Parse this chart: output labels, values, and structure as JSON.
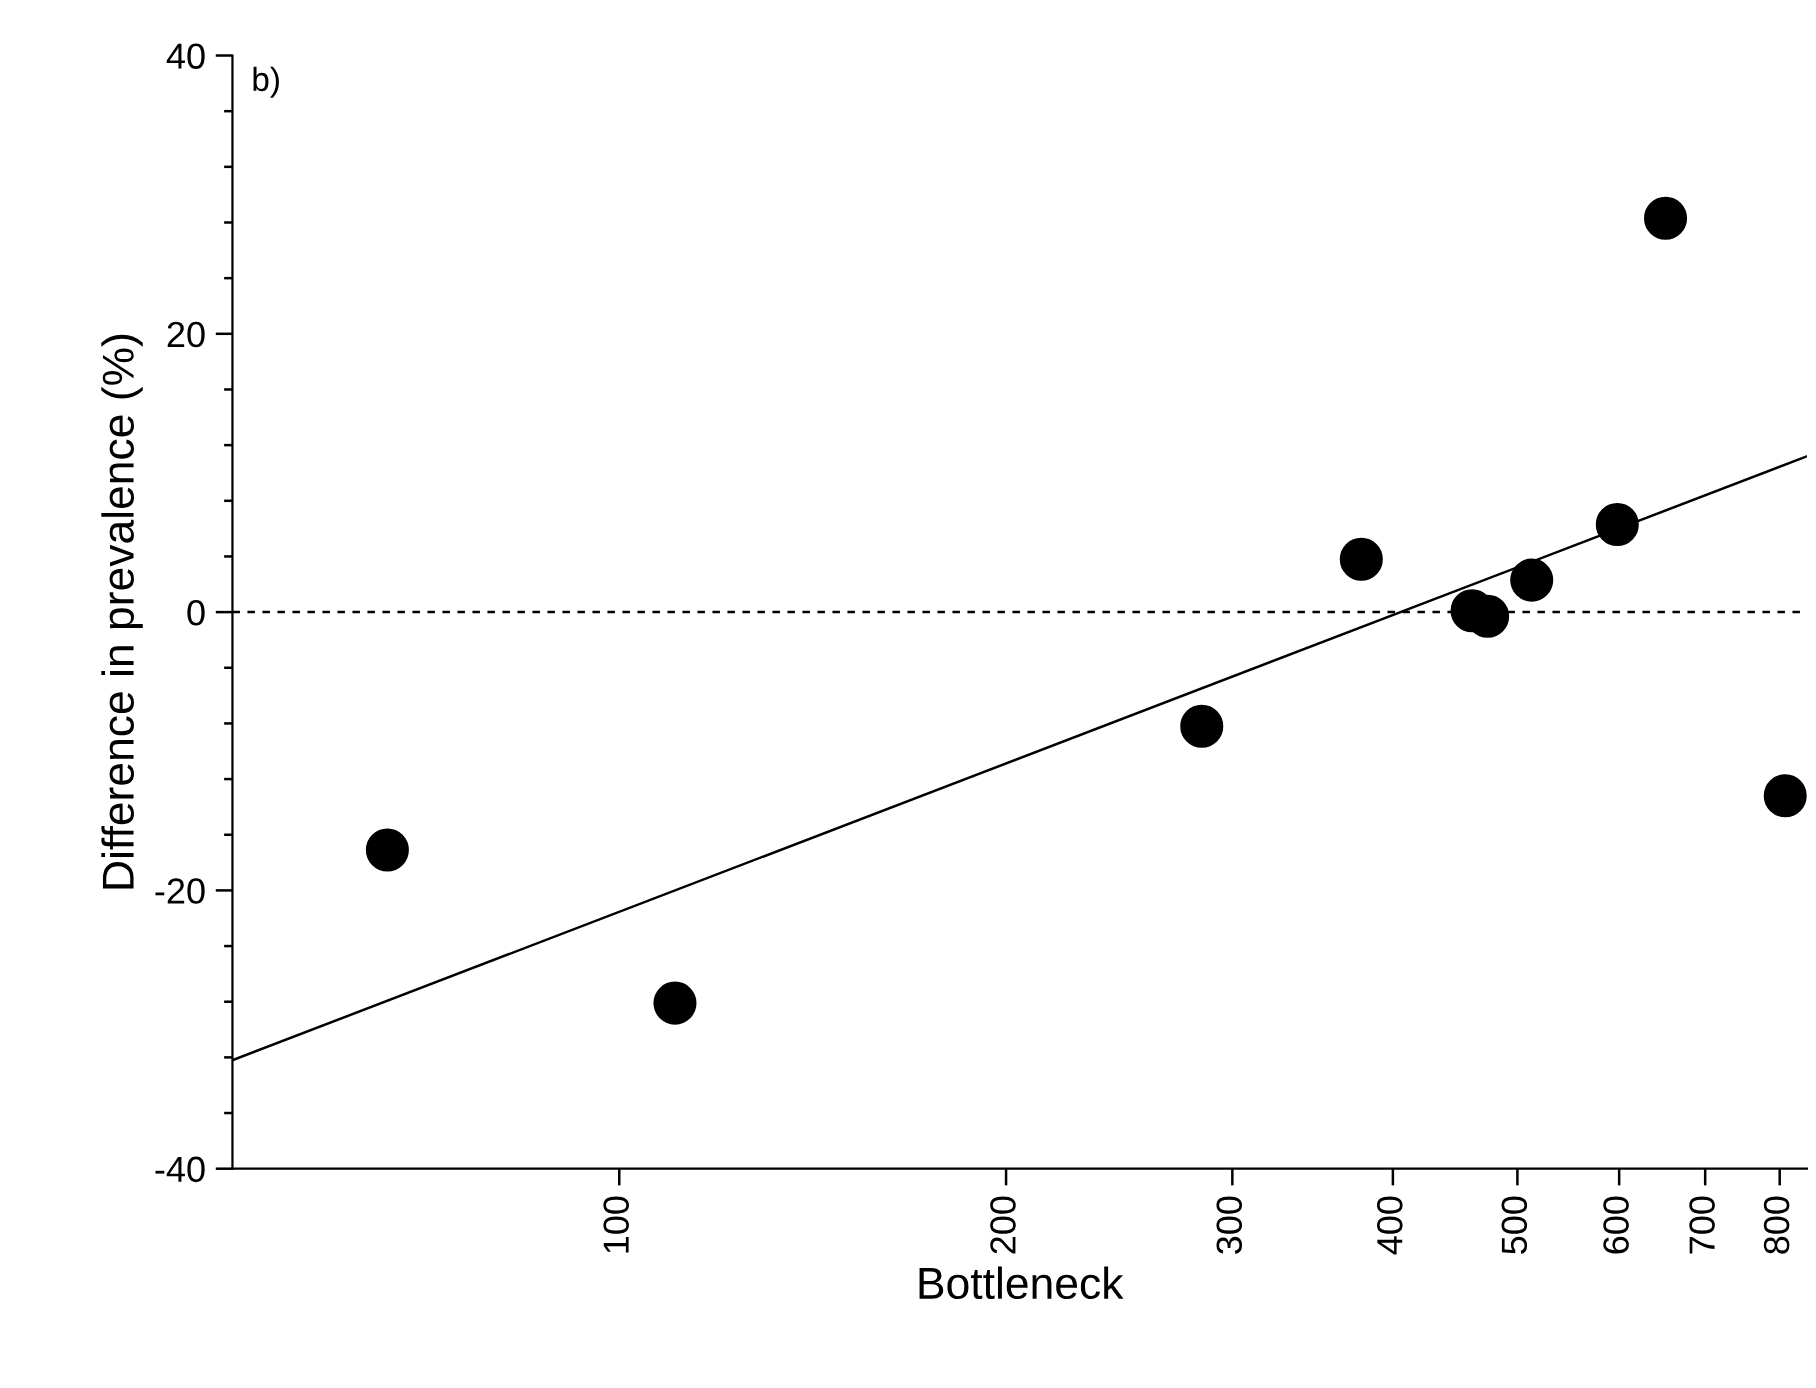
{
  "chart_data": {
    "type": "scatter",
    "xlabel": "Bottleneck",
    "ylabel": "Difference in prevalence (%)",
    "annotations": [
      "b)"
    ],
    "log": "x",
    "marker": "circle",
    "grid": false,
    "legend": false,
    "xlim": [
      50,
      840
    ],
    "xticks": [
      100,
      200,
      300,
      400,
      500,
      600,
      700,
      800
    ],
    "ylim": [
      -40,
      40
    ],
    "yticks": [
      -40,
      {
        "value": -36,
        "label": null
      },
      {
        "value": -32,
        "label": null
      },
      {
        "value": -28,
        "label": null
      },
      {
        "value": -24,
        "label": null
      },
      -20,
      {
        "value": -16,
        "label": null
      },
      {
        "value": -12,
        "label": null
      },
      {
        "value": -8,
        "label": null
      },
      {
        "value": -4,
        "label": null
      },
      0,
      {
        "value": 4,
        "label": null
      },
      {
        "value": 8,
        "label": null
      },
      {
        "value": 12,
        "label": null
      },
      {
        "value": 16,
        "label": null
      },
      20,
      {
        "value": 24,
        "label": null
      },
      {
        "value": 28,
        "label": null
      },
      {
        "value": 32,
        "label": null
      },
      {
        "value": 36,
        "label": null
      },
      40
    ],
    "ref_lines": [
      {
        "axis": "y",
        "value": 0,
        "line_style": "dashed",
        "color": "#000000"
      }
    ],
    "series": [
      {
        "color": "#000000",
        "x": [
          66,
          110.5,
          284,
          378,
          461,
          474,
          513,
          598,
          652,
          808
        ],
        "values": [
          -17.1,
          -28.1,
          -8.2,
          3.8,
          0.1,
          -0.3,
          2.3,
          6.3,
          28.3,
          -13.2
        ]
      },
      {
        "type": "line",
        "color": "#000000",
        "marker": "none",
        "x": [
          50,
          840
        ],
        "values": [
          -32.2,
          11.2
        ]
      }
    ]
  }
}
